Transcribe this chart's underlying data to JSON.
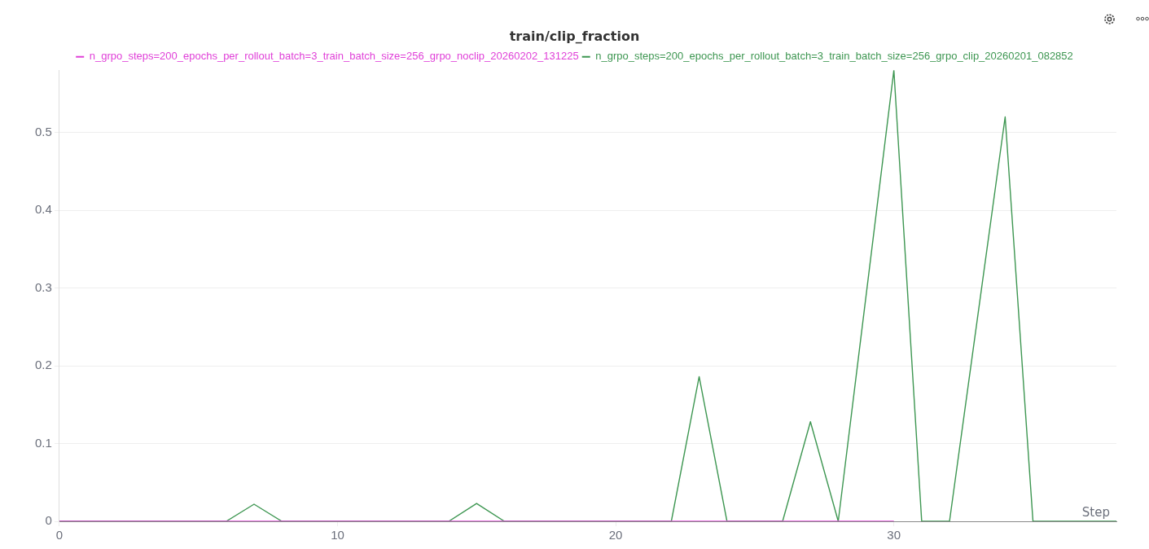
{
  "chart_data": {
    "type": "line",
    "title": "train/clip_fraction",
    "xlabel": "Step",
    "xlim": [
      0,
      38
    ],
    "xticks": [
      0,
      10,
      20,
      30
    ],
    "ylim": [
      0,
      0.58
    ],
    "yticks": [
      0,
      0.1,
      0.2,
      0.3,
      0.4,
      0.5
    ],
    "grid": "y",
    "legend": "top",
    "marker": "none",
    "line_style": "solid",
    "series": [
      {
        "name": "n_grpo_steps=200_epochs_per_rollout_batch=3_train_batch_size=256_grpo_noclip_20260202_131225",
        "color": "#e040d8",
        "x": [
          0,
          30
        ],
        "values": [
          0,
          0
        ]
      },
      {
        "name": "n_grpo_steps=200_epochs_per_rollout_batch=3_train_batch_size=256_grpo_clip_20260201_082852",
        "color": "#3d9651",
        "x": [
          0,
          6,
          7,
          8,
          14,
          15,
          16,
          22,
          23,
          24,
          26,
          27,
          28,
          30,
          31,
          32,
          34,
          35,
          38
        ],
        "values": [
          0,
          0,
          0.022,
          0,
          0,
          0.023,
          0,
          0,
          0.186,
          0,
          0,
          0.128,
          0,
          0.58,
          0,
          0,
          0.52,
          0,
          0
        ]
      }
    ]
  }
}
